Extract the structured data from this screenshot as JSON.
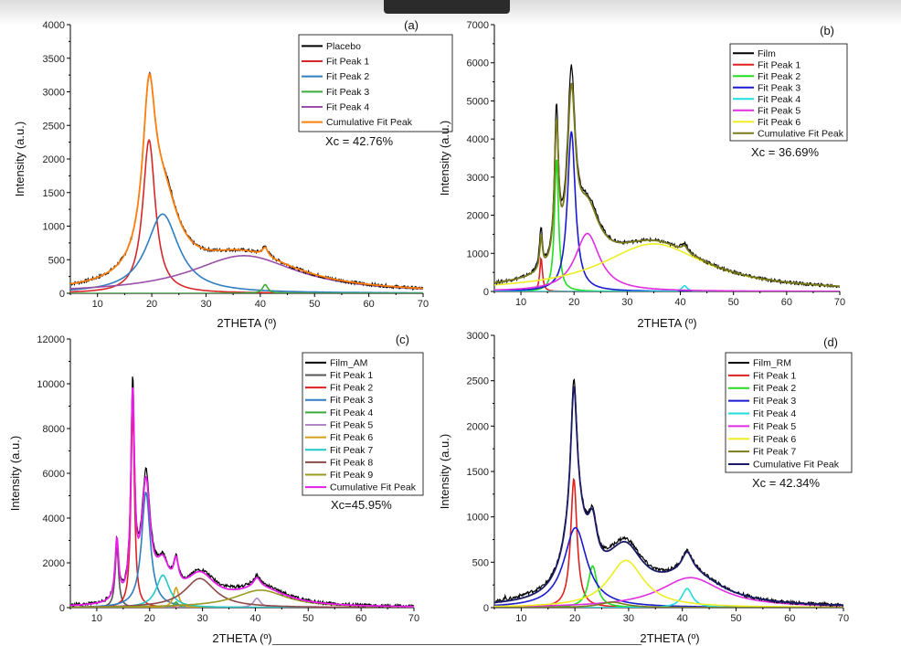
{
  "chart_data": [
    {
      "type": "line",
      "panel": "(a)",
      "xlabel": "2THETA (º)",
      "ylabel": "Intensity (a.u.)",
      "xlim": [
        5,
        70
      ],
      "ylim": [
        0,
        4000
      ],
      "xticks": [
        10,
        20,
        30,
        40,
        50,
        60,
        70
      ],
      "yticks": [
        0,
        500,
        1000,
        1500,
        2000,
        2500,
        3000,
        3500,
        4000
      ],
      "annotation": "Xc = 42.76%",
      "legend_position": "top-right",
      "measured": {
        "name": "Placebo",
        "color": "#000000"
      },
      "cumulative": {
        "name": "Cumulative Fit Peak",
        "color": "#ff7f0e"
      },
      "peaks": [
        {
          "name": "Fit Peak 1",
          "color": "#d62728",
          "center": 19.5,
          "height": 2280,
          "width": 1.4
        },
        {
          "name": "Fit Peak 2",
          "color": "#2f7ec0",
          "center": 22.0,
          "height": 1180,
          "width": 3.6
        },
        {
          "name": "Fit Peak 3",
          "color": "#3aaa3a",
          "center": 40.9,
          "height": 130,
          "width": 0.6
        },
        {
          "name": "Fit Peak 4",
          "color": "#9a4fa8",
          "center": 37.0,
          "height": 560,
          "width": 12.0
        }
      ],
      "extra_peaks": [
        {
          "center": 13.5,
          "height": 40,
          "width": 0.4
        },
        {
          "center": 23.5,
          "height": 200,
          "width": 1.0
        },
        {
          "center": 40.9,
          "height": 60,
          "width": 1.0
        }
      ]
    },
    {
      "type": "line",
      "panel": "(b)",
      "xlabel": "2THETA (º)",
      "ylabel": "Intensity (a.u.)",
      "xlim": [
        5,
        70
      ],
      "ylim": [
        0,
        7000
      ],
      "xticks": [
        10,
        20,
        30,
        40,
        50,
        60,
        70
      ],
      "yticks": [
        0,
        1000,
        2000,
        3000,
        4000,
        5000,
        6000,
        7000
      ],
      "annotation": "Xc = 36.69%",
      "legend_position": "top-right",
      "measured": {
        "name": "Film",
        "color": "#000000"
      },
      "cumulative": {
        "name": "Cumulative Fit Peak",
        "color": "#7a7a1e"
      },
      "peaks": [
        {
          "name": "Fit Peak 1",
          "color": "#e02020",
          "center": 13.8,
          "height": 880,
          "width": 0.3
        },
        {
          "name": "Fit Peak 2",
          "color": "#22dd22",
          "center": 16.7,
          "height": 3500,
          "width": 0.45
        },
        {
          "name": "Fit Peak 3",
          "color": "#1a1ad0",
          "center": 19.5,
          "height": 4200,
          "width": 0.9
        },
        {
          "name": "Fit Peak 4",
          "color": "#22dddd",
          "center": 40.8,
          "height": 150,
          "width": 0.6
        },
        {
          "name": "Fit Peak 5",
          "color": "#e02de0",
          "center": 22.5,
          "height": 1520,
          "width": 2.8
        },
        {
          "name": "Fit Peak 6",
          "color": "#eeee22",
          "center": 35.0,
          "height": 1250,
          "width": 12.0
        }
      ],
      "extra_peaks": [
        {
          "center": 13.6,
          "height": 950,
          "width": 0.4
        },
        {
          "center": 16.6,
          "height": 1700,
          "width": 0.4
        },
        {
          "center": 19.3,
          "height": 1900,
          "width": 0.8
        },
        {
          "center": 24.0,
          "height": 400,
          "width": 1.5
        },
        {
          "center": 41.0,
          "height": 300,
          "width": 0.8
        }
      ]
    },
    {
      "type": "line",
      "panel": "(c)",
      "xlabel": "2THETA (º)",
      "ylabel": "Intensity (a.u.)",
      "xlim": [
        5,
        70
      ],
      "ylim": [
        0,
        12000
      ],
      "xticks": [
        10,
        20,
        30,
        40,
        50,
        60,
        70
      ],
      "yticks": [
        0,
        2000,
        4000,
        6000,
        8000,
        10000,
        12000
      ],
      "annotation": "Xc=45.95%",
      "legend_position": "top-right",
      "measured": {
        "name": "Film_AM",
        "color": "#000000"
      },
      "cumulative": {
        "name": "Cumulative Fit Peak",
        "color": "#e81ee8"
      },
      "peaks": [
        {
          "name": "Fit Peak 1",
          "color": "#555555",
          "center": 13.8,
          "height": 2700,
          "width": 0.4
        },
        {
          "name": "Fit Peak 2",
          "color": "#e02020",
          "center": 16.8,
          "height": 9000,
          "width": 0.4
        },
        {
          "name": "Fit Peak 3",
          "color": "#2f7ec0",
          "center": 19.3,
          "height": 5150,
          "width": 1.0
        },
        {
          "name": "Fit Peak 4",
          "color": "#3aaa3a",
          "center": 25.0,
          "height": 250,
          "width": 0.5
        },
        {
          "name": "Fit Peak 5",
          "color": "#b088c8",
          "center": 40.3,
          "height": 420,
          "width": 0.8
        },
        {
          "name": "Fit Peak 6",
          "color": "#d4a017",
          "center": 25.0,
          "height": 900,
          "width": 0.6
        },
        {
          "name": "Fit Peak 7",
          "color": "#22c8c8",
          "center": 22.5,
          "height": 1450,
          "width": 1.5
        },
        {
          "name": "Fit Peak 8",
          "color": "#8b4a4a",
          "center": 29.5,
          "height": 1300,
          "width": 3.5
        },
        {
          "name": "Fit Peak 9",
          "color": "#9a9a22",
          "center": 41.0,
          "height": 780,
          "width": 6.0
        }
      ],
      "extra_peaks": [
        {
          "center": 16.6,
          "height": 1500,
          "width": 0.6
        },
        {
          "center": 19.5,
          "height": 1300,
          "width": 1.2
        },
        {
          "center": 6.3,
          "height": 250,
          "width": 0.2
        },
        {
          "center": 35.0,
          "height": 500,
          "width": 8.0
        }
      ]
    },
    {
      "type": "line",
      "panel": "(d)",
      "xlabel": "2THETA (º)",
      "ylabel": "Intensity (a.u.)",
      "xlim": [
        5,
        70
      ],
      "ylim": [
        0,
        3000
      ],
      "xticks": [
        10,
        20,
        30,
        40,
        50,
        60,
        70
      ],
      "yticks": [
        0,
        500,
        1000,
        1500,
        2000,
        2500,
        3000
      ],
      "annotation": "Xc = 42.34%",
      "legend_position": "top-right",
      "measured": {
        "name": "Film_RM",
        "color": "#000000"
      },
      "cumulative": {
        "name": "Cumulative Fit Peak",
        "color": "#1a1a66"
      },
      "peaks": [
        {
          "name": "Fit Peak 1",
          "color": "#e02020",
          "center": 19.8,
          "height": 1420,
          "width": 0.7
        },
        {
          "name": "Fit Peak 2",
          "color": "#22dd22",
          "center": 23.3,
          "height": 460,
          "width": 1.0
        },
        {
          "name": "Fit Peak 3",
          "color": "#1a1ad0",
          "center": 20.1,
          "height": 880,
          "width": 2.6
        },
        {
          "name": "Fit Peak 4",
          "color": "#22dddd",
          "center": 40.9,
          "height": 210,
          "width": 1.2
        },
        {
          "name": "Fit Peak 5",
          "color": "#e02de0",
          "center": 41.5,
          "height": 330,
          "width": 7.0
        },
        {
          "name": "Fit Peak 6",
          "color": "#eeee22",
          "center": 29.5,
          "height": 520,
          "width": 4.0
        },
        {
          "name": "Fit Peak 7",
          "color": "#7a7a1e",
          "center": 27.0,
          "height": 60,
          "width": 3.0
        }
      ],
      "extra_peaks": [
        {
          "center": 19.8,
          "height": 300,
          "width": 0.5
        },
        {
          "center": 7.0,
          "height": 120,
          "width": 0.2
        },
        {
          "center": 29.0,
          "height": 150,
          "width": 8.0
        },
        {
          "center": 11.0,
          "height": 120,
          "width": 3.0
        }
      ]
    }
  ]
}
